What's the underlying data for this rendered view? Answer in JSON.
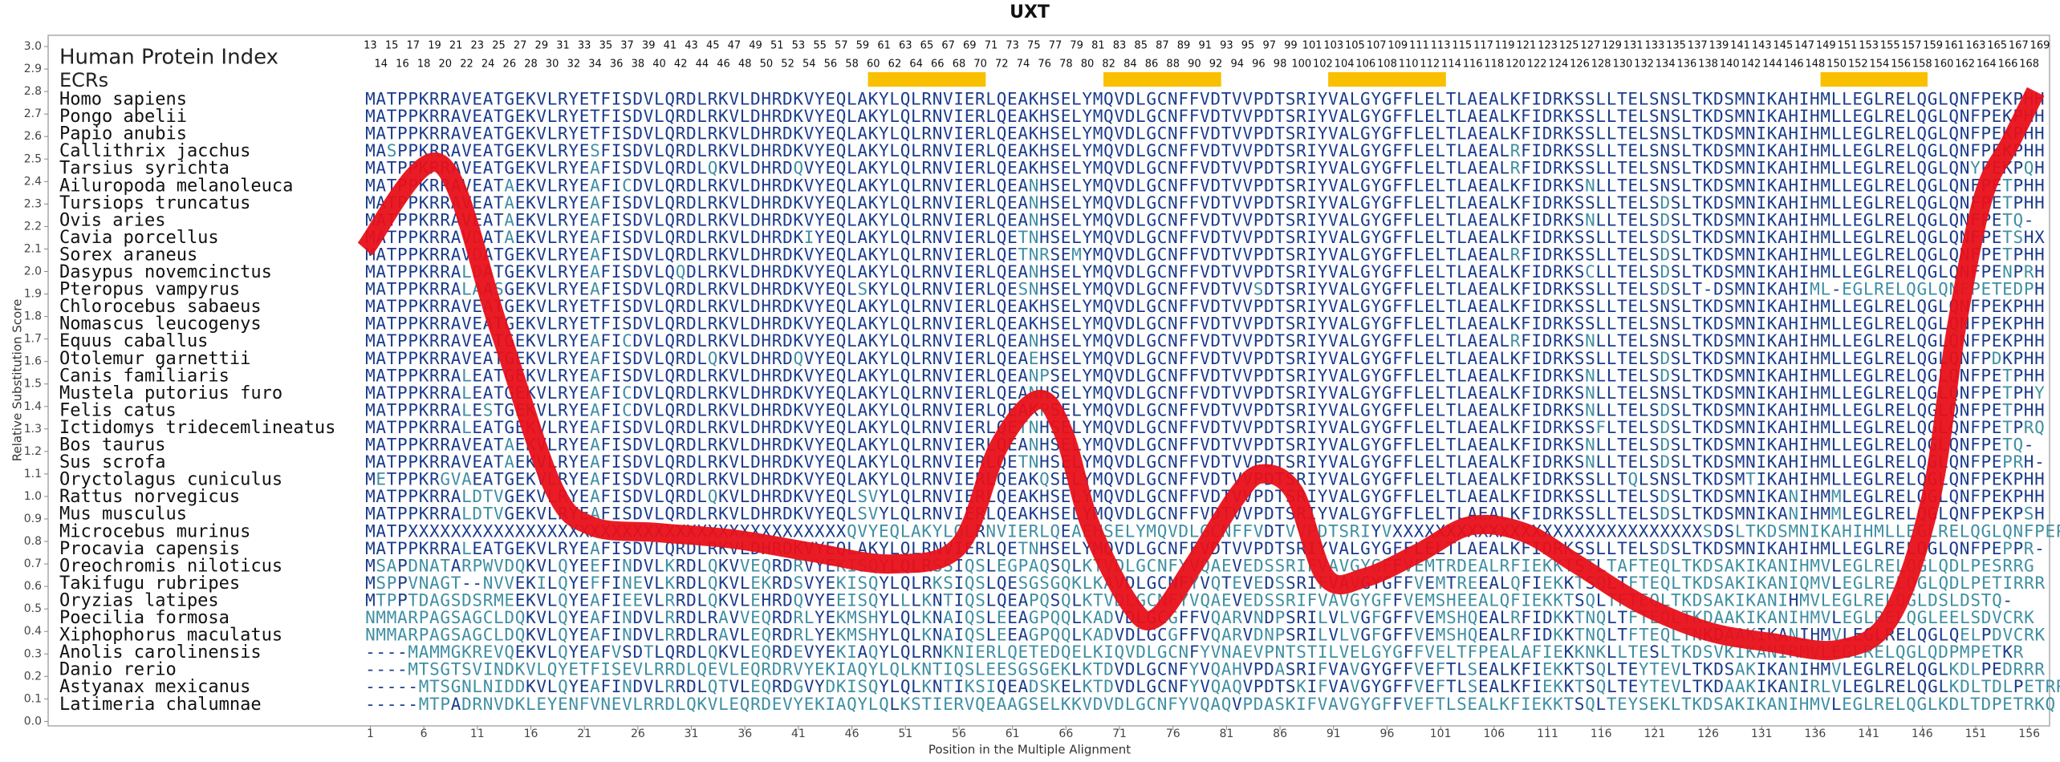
{
  "chart_data": {
    "type": "line",
    "title": "UXT",
    "xlabel": "Position in the Multiple Alignment",
    "ylabel": "Relative Substitution Score",
    "xlim": [
      -29.1,
      157.9
    ],
    "ylim": [
      -0.02,
      3.05
    ],
    "xticks": [
      1,
      6,
      11,
      16,
      21,
      26,
      31,
      36,
      41,
      46,
      51,
      56,
      61,
      66,
      71,
      76,
      81,
      86,
      91,
      96,
      101,
      106,
      111,
      116,
      121,
      126,
      131,
      136,
      141,
      146,
      151,
      156
    ],
    "yticks": [
      {
        "value": 0,
        "label": "0.0"
      },
      {
        "value": 0.1,
        "label": "0.1"
      },
      {
        "value": 0.2,
        "label": "0.2"
      },
      {
        "value": 0.3,
        "label": "0.3"
      },
      {
        "value": 0.4,
        "label": "0.4"
      },
      {
        "value": 0.5,
        "label": "0.5"
      },
      {
        "value": 0.6,
        "label": "0.6"
      },
      {
        "value": 0.7,
        "label": "0.7"
      },
      {
        "value": 0.8,
        "label": "0.8"
      },
      {
        "value": 0.9,
        "label": "0.9"
      },
      {
        "value": 1,
        "label": "1.0"
      },
      {
        "value": 1.1,
        "label": "1.1"
      },
      {
        "value": 1.2,
        "label": "1.2"
      },
      {
        "value": 1.3,
        "label": "1.3"
      },
      {
        "value": 1.4,
        "label": "1.4"
      },
      {
        "value": 1.5,
        "label": "1.5"
      },
      {
        "value": 1.6,
        "label": "1.6"
      },
      {
        "value": 1.7,
        "label": "1.7"
      },
      {
        "value": 1.8,
        "label": "1.8"
      },
      {
        "value": 1.9,
        "label": "1.9"
      },
      {
        "value": 2,
        "label": "2.0"
      },
      {
        "value": 2.1,
        "label": "2.1"
      },
      {
        "value": 2.2,
        "label": "2.2"
      },
      {
        "value": 2.3,
        "label": "2.3"
      },
      {
        "value": 2.4,
        "label": "2.4"
      },
      {
        "value": 2.5,
        "label": "2.5"
      },
      {
        "value": 2.6,
        "label": "2.6"
      },
      {
        "value": 2.7,
        "label": "2.7"
      },
      {
        "value": 2.8,
        "label": "2.8"
      },
      {
        "value": 2.9,
        "label": "2.9"
      },
      {
        "value": 3,
        "label": "3.0"
      }
    ],
    "grid": false,
    "series": [
      {
        "color": "#e8101a",
        "x": [
          0.5,
          7.5,
          13,
          18,
          21.6,
          27.7,
          35,
          42.5,
          49.8,
          56,
          59.7,
          63.4,
          65.8,
          68.3,
          72,
          74.4,
          78,
          81.8,
          84.2,
          87.3,
          90.3,
          94,
          99,
          103.8,
          108.8,
          113.7,
          119.8,
          126,
          132,
          138.2,
          143,
          146.8,
          149.2,
          151.7,
          154.2,
          156.6
        ],
        "values": [
          2.1,
          2.48,
          1.75,
          1.05,
          0.87,
          0.84,
          0.81,
          0.75,
          0.7,
          0.78,
          1.22,
          1.43,
          1.28,
          0.87,
          0.52,
          0.46,
          0.7,
          0.99,
          1.1,
          1.02,
          0.64,
          0.64,
          0.75,
          0.87,
          0.84,
          0.7,
          0.52,
          0.4,
          0.35,
          0.32,
          0.46,
          0.99,
          1.75,
          2.33,
          2.57,
          2.8
        ]
      }
    ],
    "human_index_label": "Human Protein Index",
    "human_index": [
      13,
      14,
      15,
      16,
      17,
      18,
      19,
      20,
      21,
      22,
      23,
      24,
      25,
      26,
      27,
      28,
      29,
      30,
      31,
      32,
      33,
      34,
      35,
      36,
      37,
      38,
      39,
      40,
      41,
      42,
      43,
      44,
      45,
      46,
      47,
      48,
      49,
      50,
      51,
      52,
      53,
      54,
      55,
      56,
      57,
      58,
      59,
      60,
      61,
      62,
      63,
      64,
      65,
      66,
      67,
      68,
      69,
      70,
      71,
      72,
      73,
      74,
      75,
      76,
      77,
      78,
      79,
      80,
      81,
      82,
      83,
      84,
      85,
      86,
      87,
      88,
      89,
      90,
      91,
      92,
      93,
      94,
      95,
      96,
      97,
      98,
      99,
      100,
      101,
      102,
      103,
      104,
      105,
      106,
      107,
      108,
      109,
      110,
      111,
      112,
      113,
      114,
      115,
      116,
      117,
      118,
      119,
      120,
      121,
      122,
      123,
      124,
      125,
      126,
      127,
      128,
      129,
      130,
      131,
      132,
      133,
      134,
      135,
      136,
      137,
      138,
      139,
      140,
      141,
      142,
      143,
      144,
      145,
      146,
      147,
      148,
      149,
      150,
      151,
      152,
      153,
      154,
      155,
      156,
      157,
      158,
      159,
      160,
      161,
      162,
      163,
      164,
      165,
      166,
      167,
      168,
      169
    ],
    "ecr_label": "ECRs",
    "ecr_color": "#f8c000",
    "ecrs": [
      {
        "start": 60,
        "end": 70
      },
      {
        "start": 82,
        "end": 92
      },
      {
        "start": 103,
        "end": 113
      },
      {
        "start": 149,
        "end": 158
      }
    ],
    "alignment": [
      {
        "species": "Homo sapiens",
        "sequence": "MATPPKRRAVEATGEKVLRYETFISDVLQRDLRKVLDHRDKVYEQLAKYLQLRNVIERLQEAKHSELYMQVDLGCNFFVDTVVPDTSRIYVALGYGFFLELTLAEALKFIDRKSSLLTELSNSLTKDSMNIKAHIHMLLEGLRELQGLQNFPEKPHH"
      },
      {
        "species": "Pongo abelii",
        "sequence": "MATPPKRRAVEATGEKVLRYETFISDVLQRDLRKVLDHRDKVYEQLAKYLQLRNVIERLQEAKHSELYMQVDLGCNFFVDTVVPDTSRIYVALGYGFFLELTLAEALKFIDRKSSLLTELSNSLTKDSMNIKAHIHMLLEGLRELQGLQNFPEKPHH"
      },
      {
        "species": "Papio anubis",
        "sequence": "MATPPKRRAVEATGEKVLRYETFISDVLQRDLRKVLDHRDKVYEQLAKYLQLRNVIERLQEAKHSELYMQVDLGCNFFVDTVVPDTSRIYVALGYGFFLELTLAEALKFIDRKSSLLTELSNSLTKDSMNIKAHIHMLLEGLRELQGLQNFPEKPHH"
      },
      {
        "species": "Callithrix jacchus",
        "sequence": "MASPPKRRAVEATGEKVLRYESFISDVLQRDLRKVLDHRDKVYEQLAKYLQLRNVIERLQEAKHSELYMQVDLGCNFFVDTVVPDTSRIYVALGYGFFLELTLAEALRFIDRKSSLLTELSNSLTKDSMNIKAHIHMLLEGLRELQGLQNFPEKPHH"
      },
      {
        "species": "Tarsius syrichta",
        "sequence": "MATPPKRRAVEATGEKVLRYEAFISDVLQRDLQKVLDHRDQVYEQLAKYLQLRNVIERLQEAKHSELYMQVDLGCNFFVDTVVPDTSRIYVALGYGFFLELTLAEALRFIDRKSSLLTELSNSLTKDSMNIKAHIHMLLEGLRELQGLQNYPEKPQH"
      },
      {
        "species": "Ailuropoda melanoleuca",
        "sequence": "MATPPKRRAVEATAEKVLRYEAFICDVLQRDLRKVLDHRDKVYEQLAKYLQLRNVIERLQEANHSELYMQVDLGCNFFVDTVVPDTSRIYVALGYGFFLELTLAEALKFIDRKSNLLTELSNSLTKDSMNIKAHIHMLLEGLRELQGLQNFPETPHH"
      },
      {
        "species": "Tursiops truncatus",
        "sequence": "MATPPKRRAVEATAEKVLRYEAFISDVLQRDLRKVLDHRDKVYEQLAKYLQLRNVIERLQEANHSELYMQVDLGCNFFVDTVVPDTSRIYVALGYGFFLELTLAEALKFIDRKSSLLTELSDSLTKDSMNIKAHIHMLLEGLRELQGLQNFPETPHH"
      },
      {
        "species": "Ovis aries",
        "sequence": "MATPPKRRAVEATAEKVLRYEAFISDVLQRDLRKVLDHRDKVYEQLAKYLQLRNVIERLQEANHSELYMQVDLGCNFFVDTVVPDTSRIYVALGYGFFLELTLAEALKFIDRKSNLLTELSDSLTKDSMNIKAHIHMLLEGLRELQGLQNFPETQ-"
      },
      {
        "species": "Cavia porcellus",
        "sequence": "MATPPKRRAVDATAEKVLRYEAFISDVLQRDLRKVLDHRDKIYEQLAKYLQLRNVIERLQETNHSELYMQVDLGCNFFVDTVVPDTSRIYVALGYGFFLELTLAEALKFIDRKSSLLTELSDSLTKDSMNIKAHIHMLLEGLRELQGLQNFPETSHX"
      },
      {
        "species": "Sorex araneus",
        "sequence": "MATPPKRRAVDATGEKVLRYEAFISDVLQRDLRKVLDHRDKVYEQLAKYLQLRNVIERLQETNRSEMYMQVDLGCNFFVDTVVPDTSRIYVALGYGFFLELTLAEALRFIDRKSSLLTELSDSLTKDSMNIKAHIHMLLEGLRELQGLQNFPETPHH"
      },
      {
        "species": "Dasypus novemcinctus",
        "sequence": "MATPPKRRALDATGEKVLRYEAFISDVLQQDLRKVLDHRDKVYEQLAKYLQLRNVIERLQEANHSELYMQVDLGCNFFVDTVVPDTSRIYVALGYGFFLELTLAEALKFIDRKSCLLTELSDSLTKDSMNIKAHIHMLLEGLRELQGLQNFPENPRH"
      },
      {
        "species": "Pteropus vampyrus",
        "sequence": "MATPPKRRALAASGEKVLRYEAFISDVLQRDLRKVLDHRDKVYEQLSKYLQLRNVIERLQESNHSELYMQVDLGCNFFVDTVVSDTSRIYVALGYGFFLELTLAEALKFIDRKSSLLTELSDSLT-DSMNIKAHIML-EGLRELQGLQNFPETEDPH"
      },
      {
        "species": "Chlorocebus sabaeus",
        "sequence": "MATPPKRRAVEATGEKVLRYETFISDVLQRDLRKVLDHRDKVYEQLAKYLQLRNVIERLQEAKHSELYMQVDLGCNFFVDTVVPDTSRIYVALGYGFFLELTLAEALKFIDRKSSLLTELSNSLTKDSMNIKAHIHMLLEGLRELQGLQNFPEKPHH"
      },
      {
        "species": "Nomascus leucogenys",
        "sequence": "MATPPKRRAVEATGEKVLRYETFISDVLQRDLRKVLDHRDKVYEQLAKYLQLRNVIERLQEAKHSELYMQVDLGCNFFVDTVVPDTSRIYVALGYGFFLELTLAEALKFIDRKSSLLTELSNSLTKDSMNIKAHIHMLLEGLRELQGLQNFPEKPHH"
      },
      {
        "species": "Equus caballus",
        "sequence": "MATPPKRRAVEATGEKVLRYEAFICDVLQRDLRKVLDHRDKVYEQLAKYLQLRNVIERLQEANHSELYMQVDLGCNFFVDTVVPDTSRIYVALGYGFFLELTLAEALRFIDRKSNLLTELSNSLTKDSMNIKAHIHMLLEGLRELQGLQNFPEKPHH"
      },
      {
        "species": "Otolemur garnettii",
        "sequence": "MATPPKRRAVEATGEKVLRYEAFISDVLQRDLQKVLDHRDQVYEQLAKYLQLRNVIERLQEAEHSELYMQVDLGCNFFVDTVVPDTSRIYVALGYGFFLELTLAEALKFIDRKSSLLTELSDSLTKDSMNIKAHIHMLLEGLRELQGLQNFPDKPHH"
      },
      {
        "species": "Canis familiaris",
        "sequence": "MATPPKRRALEATGEKVLRYEAFISDVLQRDLRKVLDHRDKVYEQLAKYLQLRNVIERLQEANPSELYMQVDLGCNFFVDTVVPDTSRIYVALGYGFFLELTLAEALKFIDRKSNLLTELSDSLTKDSMNIKAHIHMLLEGLRELQGLQNFPETPHH"
      },
      {
        "species": "Mustela putorius furo",
        "sequence": "MATPPKRRALEATGEKVLRYEAFICDVLQRDLRKVLDHRDKVYEQLAKYLQLRNVIERLQEANHSELYMQVDLGCNFFVDTVVPDTSRIYVALGYGFFLELTLAEALKFIDRKSNLLTELSNSLTKDSMNIKAHIHMLLEGLRELQGLQNFPETPHY"
      },
      {
        "species": "Felis catus",
        "sequence": "MATPPKRRALESTGEKVLRYEAFICDVLQRDLRKVLDHRDKVYEQLAKYLQLRNVIERLQEAKPSELYMQVDLGCNFFVDTVVPDTSRIYVALGYGFFLELTLAEALKFIDRKSNLLTELSDSLTKDSMNIKAHIHMLLEGLRELQGLQNFPETPHH"
      },
      {
        "species": "Ictidomys tridecemlineatus",
        "sequence": "MATPPKRRALEATGEKVLRYEAFISDVLQRDLRKVLDHRDKVYEQLAKYLQLRNVIERLQETNHSELYMQVDLGCNFFVDTVVPDTSRIYVALGYGFFLELTLAEALKFIDRKSSFLTELSDSLTKDSMNIKAHIHMLLEGLRELQGLQNFPETPRQ"
      },
      {
        "species": "Bos taurus",
        "sequence": "MATPPKRRAVEATAEKVLRYEAFISDVLQRDLRKVLDHRDKVYEQLAKYLQLRNVIERLQEANHSELYMQVDLGCNFFVDTVVPDTSRIYVALGYGFFLELTLAEALKFIDRKSNLLTELSDSLTKDSMNIKAHIHMLLEGLRELQGLQNFPETQ-"
      },
      {
        "species": "Sus scrofa",
        "sequence": "MATPPKRRAVEATAEKVLRYEAFISDVLQRDLRKVLDHRDKVYEQLAKYLQLRNVIERLQETNHSELYMQVDLGCNFFVDTVVPDTSRIYVALGYGFFLELTLAEALKFIDRKSNLLTELSDSLTKDSMNIKAHIHMLLEGLRELQGLQNFPEPRH-"
      },
      {
        "species": "Oryctolagus cuniculus",
        "sequence": "METPPKRGVAEATGEKVLRYEAFISDVLQRDLRKVLDHRDKVYEQLAKYLQLRNVIERLQEAKQSELYMQVDLGCNFFVDTVVPDTSRIYVALGYGFFLELTLAEALKFIDRKSSLLTQLSNSLTKDSMTIKAHIHMLLEGLRELQGLQNFPEKPHH"
      },
      {
        "species": "Rattus norvegicus",
        "sequence": "MATPPKRRALDTVGEKVLRYEAFISDVLQRDLQKVLDHRDKVYEQLSVYLQLRNVIERLQEAKHSELYMQVDLGCNFFVDTVVPDTSRIYVALGYGFFLELTLAEALKFIDRKSSLLTELSDSLTKDSMNIKANIHMMLEGLRELQGLQNFPEKPHH"
      },
      {
        "species": "Mus musculus",
        "sequence": "MATPPKRRALDTVGEKVLRYEAFISDVLQRDLRKVLDHRDKVYEQLSVYLQLRNVIERLQEAKHSELYMQVDLGCNFFVDTVVPDTSRIYVALGYGFFLELTLAEALKFIDRKSSLLTELSDSLTKDSMNIKANIHMMLEGLRELQGLQNFPEKPSH"
      },
      {
        "species": "Microcebus murinus",
        "sequence": "MATPXXXXXXXXXXXXXXXXXXXXXXXXXXXXXXXXXXXXXXXXXQVYEQLAKYLQLRNVIERLQEAEHSELYMQVDLGCNFFVDTVVPDTSRIYVXXXXXXXXXXXXXXXXXXXXXXXXXXXXXSDSLTKDSMNIKAHIHMLLEGLRELQGLQNFPEPSPH"
      },
      {
        "species": "Procavia capensis",
        "sequence": "MATPPKRRALEATGEKVLRYEAFISDVLQRDLRKVLDHRDKVYEQLAKYLQLRNVIERLQETNHSELYMQVDLGCNFFVDTVVPDTSRIYVALGYGFFLELTLAEALKFIDRKSSLLTELSDSLTKDSMNIKAHIHMLLEGLRELQGLQNFPEPPR-"
      },
      {
        "species": "Oreochromis niloticus",
        "sequence": "MSAPDNATARPWVDQKVLQYEEFINDVLKRDLQKVVEQRDRVYEKISQYLQLRSSIQSLEGPAQSQLKTVDLGCNFYVQAEVEDSSRIFVAVGYGFFVEMTRDEALRFIEKKTSTLTAFTEQLTKDSAKIKANIHMVLEGLRELQGLQDLPESRRG"
      },
      {
        "species": "Takifugu rubripes",
        "sequence": "MSPPVNAGT--NVVEKILQYEFFINEVLKRDLQKVLEKRDSVYEKISQYLQLRKSIQSLQESGSGQKLKAVDLGCNFYVQTEVEDSSRIFVAVGYGFFVEMTREEALQFIEKKTSQLTFTEQLTKDSAKIKANIQMVLEGLRELQGLQDLPETIRRR"
      },
      {
        "species": "Oryzias latipes",
        "sequence": "MTPPTDAGSDSRMEEKVLQYEAFIEEVLRRDLQKVLEHRDQVYEEISQYLLLKNTIQSLQEAPQSQLKTVDLGCNFYVQAEVEDSSRIFVAVGYGFFVEMSHEEALQFIEKKTSQLTFTEQLTKDSAKIKANIHMVLEGLRELQGLDSLDSTQ-"
      },
      {
        "species": "Poecilia formosa",
        "sequence": "NMMARPAGSAGCLDQKVLQYEAFINDVLRRDLRAVVEQRDRLYEKMSHYLQLKNAIQSLEEAGPQQLKADVDLGCGFFVQARVNDPSRILVLVGFGFFVEMSHQEALRFIDKKTNQLTFTEQLTKDAAKIKANIHMVLEGLRELQGLEELSDVCRK"
      },
      {
        "species": "Xiphophorus maculatus",
        "sequence": "NMMARPAGSAGCLDQKVLQYEAFINDVLRRDLRAVLEQRDRLYEKMSHYLQLKNAIQSLEEAGPQQLKADVDLGCGFFVQARVDNPSRILVLVGFGFFVEMSHQEALRFIDKKTNQLTFTEQLTNKDAAKIKANIHMVLEGLRELQGLQELPDVCRK"
      },
      {
        "species": "Anolis carolinensis",
        "sequence": "----MAMMGKREVQEKVLQYEAFVSDTLQRDLQKVLEQRDEVYEKIAQYLQLRNKNIERLQETEDQELKIQVDLGCNFYVNAEVPNTSTILVELGYGFFVELTFPEALAFIEKKNKLLTESLTKDSVKIKANIRMVLEGLRELQGLQDPMPETKR"
      },
      {
        "species": "Danio rerio",
        "sequence": "----MTSGTSVINDKVLQYETFISEVLRRDLQEVLEQRDRVYEKIAQYLQLKNTIQSLEESGSGEKLKTDVDLGCNFYVQAHVPDASRIFVAVGYGFFVEFTLSEALKFIEKKTSQLTEYTEVLTKDSAKIKANIHMVLEGLRELQGLKDLPEDRRR"
      },
      {
        "species": "Astyanax mexicanus",
        "sequence": "-----MTSGNLNIDDKVLQYEAFINDVLRRDLQTVLEQRDGVYDKISQYLQLKNTIKSIQEADSKELKTDVDLGCNFYVQAQVPDTSKIFVAVGYGFFVEFTLSEALKFIEKKTSQLTEYTEVLTKDAAKIKANIRLVLEGLRELQGLKDLTDLPETRR"
      },
      {
        "species": "Latimeria chalumnae",
        "sequence": "-----MTPADRNVDKLEYENFVNEVLRRDLQKVLEQRDEVYEKIAQYLQLKSTIERVQEAAGSELKKVDVDLGCNFYVQAQVPDASKIFVAVGYGFFVEFTLSEALKFIEKKTSQLTEYSEKLTKDSAKIKANIHMVLEGLRELQGLKDLTDPETRKQ"
      }
    ]
  }
}
